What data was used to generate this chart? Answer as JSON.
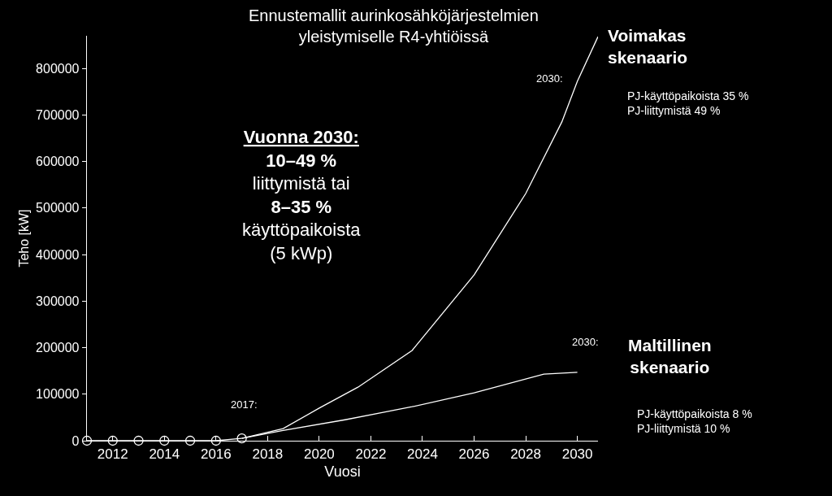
{
  "chart_data": {
    "type": "line",
    "title": "Ennustemallit aurinkosähköjärjestelmien\nyleistymiselle R4-yhtiöissä",
    "xlabel": "Vuosi",
    "ylabel": "Teho [kW]",
    "xlim": [
      2011,
      2030.8
    ],
    "xticks": [
      2012,
      2014,
      2016,
      2018,
      2020,
      2022,
      2024,
      2026,
      2028,
      2030
    ],
    "ylim": [
      0,
      870000
    ],
    "yticks": [
      0,
      100000,
      200000,
      300000,
      400000,
      500000,
      600000,
      700000,
      800000
    ],
    "grid": false,
    "legend": false,
    "line_style": "solid",
    "series": [
      {
        "color": "#ffffff",
        "marker": "circle",
        "x": [
          2011,
          2012,
          2013,
          2014,
          2015,
          2016,
          2017
        ],
        "values": [
          0,
          0,
          0,
          0,
          0,
          0,
          5000
        ]
      },
      {
        "name": "Voimakas\nskenaario",
        "color": "#ffffff",
        "x": [
          2017,
          2018.6,
          2020,
          2021.5,
          2023.6,
          2026,
          2028,
          2029.4,
          2030,
          2030.8
        ],
        "values": [
          5000,
          26000,
          70000,
          115000,
          194000,
          356000,
          531000,
          685000,
          772000,
          868000
        ]
      },
      {
        "name": "Maltillinen\nskenaario",
        "color": "#ffffff",
        "x": [
          2017,
          2018.6,
          2021,
          2023.6,
          2026,
          2028.7,
          2030
        ],
        "values": [
          5000,
          22000,
          45000,
          73000,
          103000,
          143000,
          147000
        ]
      }
    ],
    "annotations": [
      "2017:",
      "2030:",
      "PJ-käyttöpaikoista 35 %\nPJ-liittymistä 49 %",
      "2030:",
      "PJ-käyttöpaikoista 8 %\nPJ-liittymistä 10 %",
      "Vuonna 2030:\n10–49 %\nliittymistä tai\n8–35 %\nkäyttöpaikoista\n(5 kWp)"
    ]
  }
}
